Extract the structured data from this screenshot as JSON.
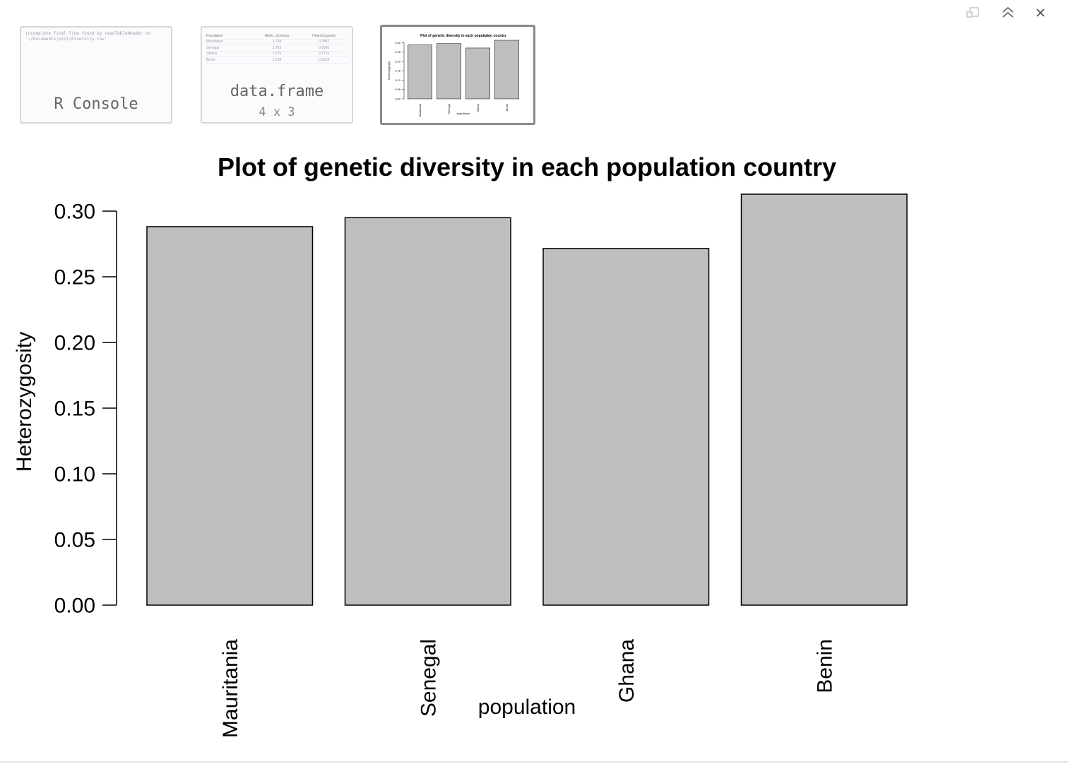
{
  "window_controls": {
    "popout_icon": "popout-window-icon",
    "collapse_icon": "double-chevron-up-icon",
    "close_icon": "close-icon"
  },
  "thumbnails": {
    "console": {
      "message": "incomplete final line found by readTableHeader on '~/Documents/plot/diversity.csv'",
      "label": "R Console"
    },
    "dataframe": {
      "columns": [
        "Population",
        "Allelic_richness",
        "Heterozygosity"
      ],
      "rows": [
        [
          "Mauritania",
          "1.734",
          "0.2882"
        ],
        [
          "Senegal",
          "1.762",
          "0.2950"
        ],
        [
          "Ghana",
          "1.676",
          "0.2716"
        ],
        [
          "Benin",
          "1.758",
          "0.3129"
        ]
      ],
      "label": "data.frame",
      "dims": "4 x 3"
    }
  },
  "chart_data": {
    "type": "bar",
    "title": "Plot of genetic diversity in each population country",
    "xlabel": "population",
    "ylabel": "Heterozygosity",
    "categories": [
      "Mauritania",
      "Senegal",
      "Ghana",
      "Benin"
    ],
    "values": [
      0.2882,
      0.295,
      0.2716,
      0.3129
    ],
    "ylim": [
      0,
      0.3129
    ],
    "yticks": [
      0,
      0.05,
      0.1,
      0.15,
      0.2,
      0.25,
      0.3
    ],
    "ytick_labels": [
      "0.00",
      "0.05",
      "0.10",
      "0.15",
      "0.20",
      "0.25",
      "0.30"
    ],
    "bar_color": "#bebebe",
    "grid": false,
    "legend": "none"
  }
}
